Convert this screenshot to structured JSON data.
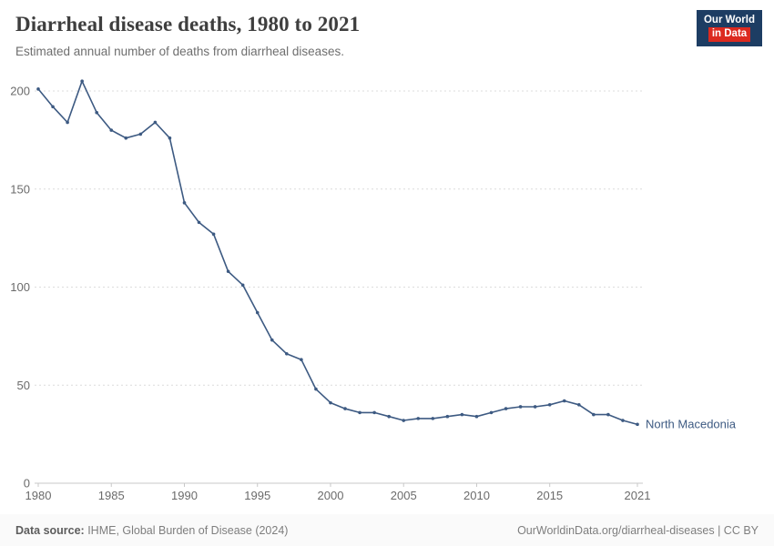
{
  "header": {
    "title": "Diarrheal disease deaths, 1980 to 2021",
    "subtitle": "Estimated annual number of deaths from diarrheal diseases.",
    "logo": {
      "line1": "Our World",
      "line2": "in Data"
    }
  },
  "chart_data": {
    "type": "line",
    "title": "Diarrheal disease deaths, 1980 to 2021",
    "xlabel": "",
    "ylabel": "Estimated annual number of deaths",
    "xlim": [
      1980,
      2021
    ],
    "ylim": [
      0,
      200
    ],
    "grid": "horizontal-dashed",
    "legend_position": "end-of-line-label",
    "x_ticks": [
      1980,
      1985,
      1990,
      1995,
      2000,
      2005,
      2010,
      2015,
      2021
    ],
    "y_ticks": [
      0,
      50,
      100,
      150,
      200
    ],
    "x": [
      1980,
      1981,
      1982,
      1983,
      1984,
      1985,
      1986,
      1987,
      1988,
      1989,
      1990,
      1991,
      1992,
      1993,
      1994,
      1995,
      1996,
      1997,
      1998,
      1999,
      2000,
      2001,
      2002,
      2003,
      2004,
      2005,
      2006,
      2007,
      2008,
      2009,
      2010,
      2011,
      2012,
      2013,
      2014,
      2015,
      2016,
      2017,
      2018,
      2019,
      2020,
      2021
    ],
    "series": [
      {
        "name": "North Macedonia",
        "color": "#3d5a82",
        "values": [
          201,
          192,
          184,
          205,
          189,
          180,
          176,
          178,
          184,
          176,
          143,
          133,
          127,
          108,
          101,
          87,
          73,
          66,
          63,
          48,
          41,
          38,
          36,
          36,
          34,
          32,
          33,
          33,
          34,
          35,
          34,
          36,
          38,
          39,
          39,
          40,
          42,
          40,
          35,
          35,
          32,
          30
        ]
      }
    ]
  },
  "footer": {
    "source_label": "Data source:",
    "source_text": " IHME, Global Burden of Disease (2024)",
    "credit": "OurWorldinData.org/diarrheal-diseases | CC BY"
  },
  "colors": {
    "line": "#3d5a82",
    "grid": "#dcdcdc",
    "axis": "#c8c8c8",
    "tick_label": "#6b6b6b",
    "logo_bg": "#1d3d63",
    "logo_accent": "#dc2a1f"
  }
}
